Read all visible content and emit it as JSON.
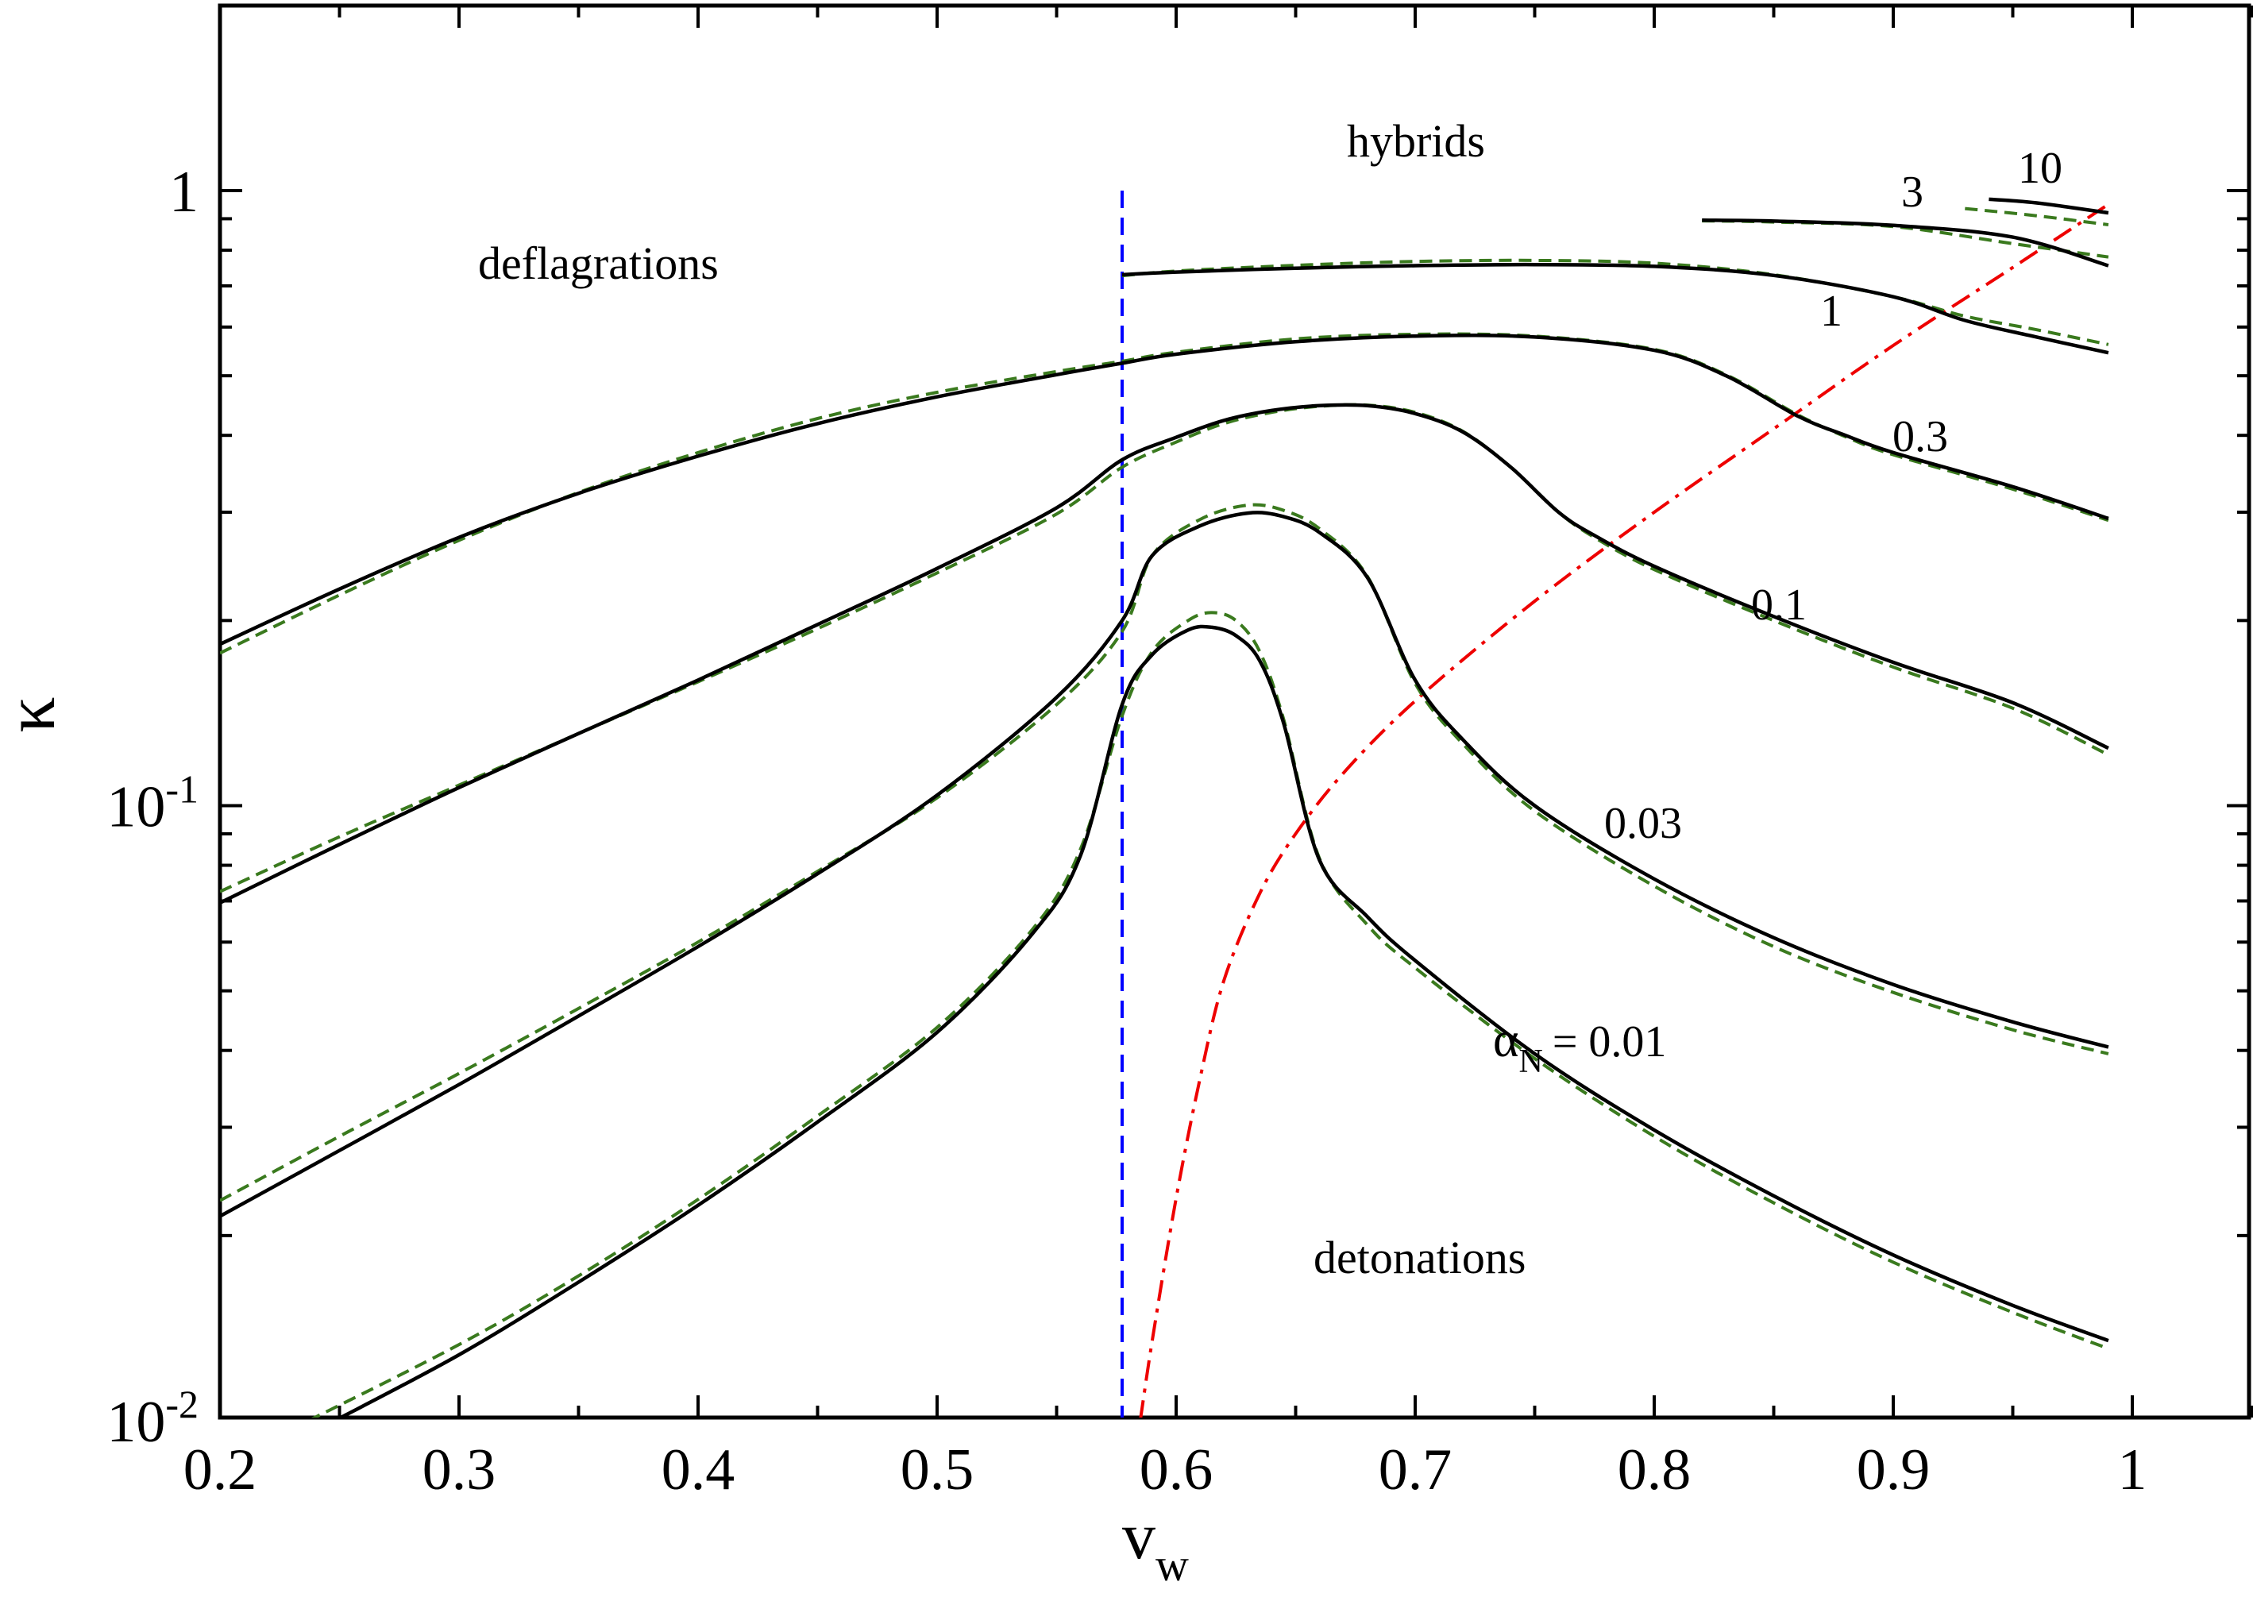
{
  "chart_data": {
    "type": "line",
    "xlabel": "v",
    "xlabel_sub": "w",
    "ylabel": "κ",
    "xlim": [
      0.2,
      1.05
    ],
    "ylim": [
      0.01,
      2.0
    ],
    "yscale": "log",
    "grid": false,
    "x_ticks": [
      "0.2",
      "0.3",
      "0.4",
      "0.5",
      "0.6",
      "0.7",
      "0.8",
      "0.9",
      "1"
    ],
    "y_ticks": [
      {
        "value": 1,
        "base": "1",
        "exp": ""
      },
      {
        "value": 0.1,
        "base": "10",
        "exp": "-1"
      },
      {
        "value": 0.01,
        "base": "10",
        "exp": "-2"
      }
    ],
    "region_labels": {
      "deflagrations": "deflagrations",
      "hybrids": "hybrids",
      "detonations": "detonations"
    },
    "curve_labels": {
      "a10": "10",
      "a3": "3",
      "a1": "1",
      "a03": "0.3",
      "a01": "0.1",
      "a003": "0.03",
      "alpha_symbol": "α",
      "alpha_sub": "N",
      "a001": "= 0.01"
    },
    "colors": {
      "numerical": "#000000",
      "fit": "#3a7a1e",
      "sound_speed_line": "#0000ff",
      "jouguet_line": "#ee0000"
    },
    "sound_speed": 0.5774,
    "series": [
      {
        "alpha": 0.01,
        "solid": [
          [
            0.248,
            0.01
          ],
          [
            0.3,
            0.0128
          ],
          [
            0.35,
            0.0168
          ],
          [
            0.4,
            0.0224
          ],
          [
            0.45,
            0.0306
          ],
          [
            0.5,
            0.0428
          ],
          [
            0.54,
            0.062
          ],
          [
            0.56,
            0.083
          ],
          [
            0.5774,
            0.146
          ],
          [
            0.59,
            0.176
          ],
          [
            0.605,
            0.193
          ],
          [
            0.615,
            0.195
          ],
          [
            0.625,
            0.189
          ],
          [
            0.635,
            0.172
          ],
          [
            0.645,
            0.136
          ],
          [
            0.66,
            0.0815
          ],
          [
            0.68,
            0.066
          ],
          [
            0.7,
            0.056
          ],
          [
            0.75,
            0.0395
          ],
          [
            0.8,
            0.0297
          ],
          [
            0.85,
            0.0232
          ],
          [
            0.9,
            0.0186
          ],
          [
            0.95,
            0.0154
          ],
          [
            0.99,
            0.0135
          ]
        ],
        "dashed": [
          [
            0.237,
            0.01
          ],
          [
            0.3,
            0.0133
          ],
          [
            0.35,
            0.0172
          ],
          [
            0.4,
            0.0229
          ],
          [
            0.45,
            0.0313
          ],
          [
            0.5,
            0.0436
          ],
          [
            0.54,
            0.063
          ],
          [
            0.56,
            0.085
          ],
          [
            0.5774,
            0.14
          ],
          [
            0.59,
            0.178
          ],
          [
            0.605,
            0.2
          ],
          [
            0.615,
            0.206
          ],
          [
            0.625,
            0.2
          ],
          [
            0.635,
            0.178
          ],
          [
            0.645,
            0.138
          ],
          [
            0.66,
            0.082
          ],
          [
            0.68,
            0.064
          ],
          [
            0.7,
            0.0545
          ],
          [
            0.75,
            0.0388
          ],
          [
            0.8,
            0.029
          ],
          [
            0.85,
            0.0226
          ],
          [
            0.9,
            0.0181
          ],
          [
            0.95,
            0.015
          ],
          [
            0.99,
            0.0131
          ]
        ]
      },
      {
        "alpha": 0.03,
        "solid": [
          [
            0.2,
            0.0215
          ],
          [
            0.25,
            0.0275
          ],
          [
            0.3,
            0.0352
          ],
          [
            0.35,
            0.0455
          ],
          [
            0.4,
            0.059
          ],
          [
            0.45,
            0.0775
          ],
          [
            0.5,
            0.104
          ],
          [
            0.55,
            0.15
          ],
          [
            0.5774,
            0.2
          ],
          [
            0.59,
            0.255
          ],
          [
            0.61,
            0.285
          ],
          [
            0.63,
            0.299
          ],
          [
            0.645,
            0.295
          ],
          [
            0.66,
            0.278
          ],
          [
            0.68,
            0.235
          ],
          [
            0.7,
            0.16
          ],
          [
            0.72,
            0.128
          ],
          [
            0.75,
            0.1
          ],
          [
            0.8,
            0.076
          ],
          [
            0.85,
            0.061
          ],
          [
            0.9,
            0.0512
          ],
          [
            0.95,
            0.0445
          ],
          [
            0.99,
            0.0405
          ]
        ],
        "dashed": [
          [
            0.2,
            0.0228
          ],
          [
            0.25,
            0.029
          ],
          [
            0.3,
            0.0367
          ],
          [
            0.35,
            0.0468
          ],
          [
            0.4,
            0.06
          ],
          [
            0.45,
            0.0782
          ],
          [
            0.5,
            0.103
          ],
          [
            0.55,
            0.146
          ],
          [
            0.5774,
            0.192
          ],
          [
            0.59,
            0.255
          ],
          [
            0.61,
            0.292
          ],
          [
            0.63,
            0.308
          ],
          [
            0.645,
            0.302
          ],
          [
            0.66,
            0.282
          ],
          [
            0.68,
            0.236
          ],
          [
            0.7,
            0.158
          ],
          [
            0.72,
            0.126
          ],
          [
            0.75,
            0.098
          ],
          [
            0.8,
            0.074
          ],
          [
            0.85,
            0.059
          ],
          [
            0.9,
            0.0497
          ],
          [
            0.95,
            0.0432
          ],
          [
            0.99,
            0.0395
          ]
        ]
      },
      {
        "alpha": 0.1,
        "solid": [
          [
            0.2,
            0.0695
          ],
          [
            0.25,
            0.0865
          ],
          [
            0.3,
            0.107
          ],
          [
            0.35,
            0.131
          ],
          [
            0.4,
            0.16
          ],
          [
            0.45,
            0.197
          ],
          [
            0.5,
            0.243
          ],
          [
            0.55,
            0.305
          ],
          [
            0.5774,
            0.365
          ],
          [
            0.6,
            0.397
          ],
          [
            0.62,
            0.423
          ],
          [
            0.64,
            0.439
          ],
          [
            0.66,
            0.447
          ],
          [
            0.68,
            0.447
          ],
          [
            0.7,
            0.434
          ],
          [
            0.72,
            0.405
          ],
          [
            0.74,
            0.355
          ],
          [
            0.76,
            0.3
          ],
          [
            0.775,
            0.275
          ],
          [
            0.8,
            0.245
          ],
          [
            0.85,
            0.203
          ],
          [
            0.9,
            0.171
          ],
          [
            0.95,
            0.147
          ],
          [
            0.99,
            0.124
          ]
        ],
        "dashed": [
          [
            0.2,
            0.0725
          ],
          [
            0.25,
            0.089
          ],
          [
            0.3,
            0.108
          ],
          [
            0.35,
            0.131
          ],
          [
            0.4,
            0.159
          ],
          [
            0.45,
            0.194
          ],
          [
            0.5,
            0.239
          ],
          [
            0.55,
            0.298
          ],
          [
            0.5774,
            0.355
          ],
          [
            0.6,
            0.39
          ],
          [
            0.62,
            0.418
          ],
          [
            0.64,
            0.436
          ],
          [
            0.66,
            0.446
          ],
          [
            0.68,
            0.448
          ],
          [
            0.7,
            0.436
          ],
          [
            0.72,
            0.406
          ],
          [
            0.74,
            0.355
          ],
          [
            0.76,
            0.3
          ],
          [
            0.775,
            0.273
          ],
          [
            0.8,
            0.242
          ],
          [
            0.85,
            0.2
          ],
          [
            0.9,
            0.168
          ],
          [
            0.95,
            0.144
          ],
          [
            0.99,
            0.121
          ]
        ]
      },
      {
        "alpha": 0.3,
        "solid": [
          [
            0.2,
            0.183
          ],
          [
            0.25,
            0.225
          ],
          [
            0.3,
            0.273
          ],
          [
            0.35,
            0.322
          ],
          [
            0.4,
            0.37
          ],
          [
            0.45,
            0.418
          ],
          [
            0.5,
            0.462
          ],
          [
            0.55,
            0.502
          ],
          [
            0.5774,
            0.524
          ],
          [
            0.6,
            0.542
          ],
          [
            0.65,
            0.568
          ],
          [
            0.7,
            0.58
          ],
          [
            0.75,
            0.578
          ],
          [
            0.8,
            0.55
          ],
          [
            0.83,
            0.5
          ],
          [
            0.86,
            0.43
          ],
          [
            0.88,
            0.4
          ],
          [
            0.9,
            0.375
          ],
          [
            0.95,
            0.33
          ],
          [
            0.99,
            0.293
          ]
        ],
        "dashed": [
          [
            0.2,
            0.177
          ],
          [
            0.25,
            0.22
          ],
          [
            0.3,
            0.27
          ],
          [
            0.35,
            0.323
          ],
          [
            0.4,
            0.375
          ],
          [
            0.45,
            0.426
          ],
          [
            0.5,
            0.47
          ],
          [
            0.55,
            0.508
          ],
          [
            0.5774,
            0.528
          ],
          [
            0.6,
            0.546
          ],
          [
            0.65,
            0.574
          ],
          [
            0.7,
            0.584
          ],
          [
            0.75,
            0.58
          ],
          [
            0.8,
            0.552
          ],
          [
            0.83,
            0.502
          ],
          [
            0.86,
            0.432
          ],
          [
            0.88,
            0.398
          ],
          [
            0.9,
            0.372
          ],
          [
            0.95,
            0.327
          ],
          [
            0.99,
            0.291
          ]
        ]
      },
      {
        "alpha": 1,
        "solid": [
          [
            0.5774,
            0.73
          ],
          [
            0.6,
            0.737
          ],
          [
            0.65,
            0.748
          ],
          [
            0.7,
            0.755
          ],
          [
            0.75,
            0.758
          ],
          [
            0.8,
            0.753
          ],
          [
            0.85,
            0.728
          ],
          [
            0.9,
            0.672
          ],
          [
            0.93,
            0.615
          ],
          [
            0.96,
            0.578
          ],
          [
            0.99,
            0.545
          ]
        ],
        "dashed": [
          [
            0.5774,
            0.727
          ],
          [
            0.6,
            0.74
          ],
          [
            0.65,
            0.756
          ],
          [
            0.7,
            0.767
          ],
          [
            0.75,
            0.77
          ],
          [
            0.8,
            0.762
          ],
          [
            0.85,
            0.73
          ],
          [
            0.9,
            0.672
          ],
          [
            0.93,
            0.625
          ],
          [
            0.96,
            0.594
          ],
          [
            0.99,
            0.562
          ]
        ]
      },
      {
        "alpha": 3,
        "solid": [
          [
            0.82,
            0.895
          ],
          [
            0.85,
            0.892
          ],
          [
            0.9,
            0.878
          ],
          [
            0.95,
            0.84
          ],
          [
            0.99,
            0.755
          ]
        ],
        "dashed": [
          [
            0.82,
            0.893
          ],
          [
            0.85,
            0.889
          ],
          [
            0.9,
            0.874
          ],
          [
            0.95,
            0.82
          ],
          [
            0.99,
            0.78
          ]
        ]
      },
      {
        "alpha": 10,
        "solid": [
          [
            0.94,
            0.968
          ],
          [
            0.96,
            0.955
          ],
          [
            0.99,
            0.92
          ]
        ],
        "dashed": [
          [
            0.93,
            0.935
          ],
          [
            0.96,
            0.91
          ],
          [
            0.99,
            0.88
          ]
        ]
      }
    ],
    "jouguet_curve": [
      [
        0.585,
        0.01
      ],
      [
        0.59,
        0.0135
      ],
      [
        0.6,
        0.023
      ],
      [
        0.61,
        0.036
      ],
      [
        0.62,
        0.052
      ],
      [
        0.635,
        0.072
      ],
      [
        0.65,
        0.09
      ],
      [
        0.67,
        0.113
      ],
      [
        0.7,
        0.148
      ],
      [
        0.75,
        0.215
      ],
      [
        0.8,
        0.3
      ],
      [
        0.85,
        0.41
      ],
      [
        0.9,
        0.56
      ],
      [
        0.95,
        0.75
      ],
      [
        0.99,
        0.95
      ]
    ]
  }
}
